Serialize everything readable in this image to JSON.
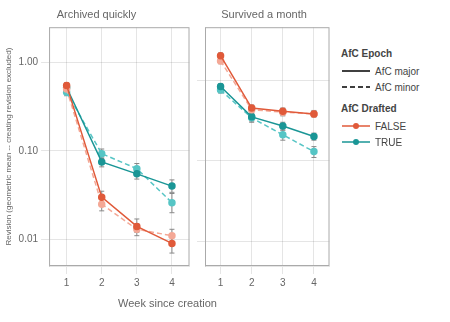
{
  "chart_data": {
    "type": "line",
    "xlabel": "Week since creation",
    "log": "y",
    "grid": true,
    "legend": "right",
    "legend_groups": [
      {
        "title": "AfC Epoch",
        "entries": [
          {
            "label": "AfC major",
            "color": "#000000",
            "line_style": "solid"
          },
          {
            "label": "AfC minor",
            "color": "#000000",
            "line_style": "dashed"
          }
        ]
      },
      {
        "title": "AfC Drafted",
        "entries": [
          {
            "label": "FALSE",
            "color": "#e05a3a",
            "line_style": "solid",
            "marker": "o"
          },
          {
            "label": "TRUE",
            "color": "#1a9696",
            "line_style": "solid",
            "marker": "o"
          }
        ]
      }
    ],
    "panels": [
      {
        "title": "Archived quickly",
        "ylabel": "Revision (geometric mean -- creating revision excluded)",
        "x": [
          1,
          2,
          3,
          4
        ],
        "xlim": [
          0.5,
          4.5
        ],
        "xticks": [
          1,
          2,
          3,
          4
        ],
        "ylim": [
          0.005,
          2.5
        ],
        "yticks": [
          0.01,
          {
            "value": 0.1,
            "label": "0.10"
          },
          {
            "value": 1,
            "label": "1.00"
          }
        ],
        "series": [
          {
            "drafted": "FALSE",
            "epoch": "AfC major",
            "color": "#e05a3a",
            "line_style": "solid",
            "marker": "o",
            "values": [
              0.55,
              0.03,
              0.014,
              0.009
            ],
            "low": [
              0.51,
              0.026,
              0.012,
              0.007
            ],
            "high": [
              0.59,
              0.035,
              0.017,
              0.011
            ]
          },
          {
            "drafted": "FALSE",
            "epoch": "AfC minor",
            "color": "#f4a896",
            "line_style": "dashed",
            "marker": "o",
            "values": [
              0.5,
              0.025,
              0.013,
              0.011
            ],
            "low": [
              0.46,
              0.021,
              0.011,
              0.009
            ],
            "high": [
              0.54,
              0.03,
              0.015,
              0.013
            ]
          },
          {
            "drafted": "TRUE",
            "epoch": "AfC major",
            "color": "#1a9696",
            "line_style": "solid",
            "marker": "o",
            "values": [
              0.52,
              0.075,
              0.055,
              0.04
            ],
            "low": [
              0.48,
              0.066,
              0.048,
              0.034
            ],
            "high": [
              0.56,
              0.085,
              0.063,
              0.047
            ]
          },
          {
            "drafted": "TRUE",
            "epoch": "AfC minor",
            "color": "#56c5c5",
            "line_style": "dashed",
            "marker": "o",
            "values": [
              0.46,
              0.093,
              0.063,
              0.026
            ],
            "low": [
              0.42,
              0.082,
              0.055,
              0.02
            ],
            "high": [
              0.5,
              0.105,
              0.072,
              0.033
            ]
          }
        ]
      },
      {
        "title": "Survived a month",
        "tick_labels": "x",
        "x": [
          1,
          2,
          3,
          4
        ],
        "xlim": [
          0.5,
          4.5
        ],
        "xticks": [
          1,
          2,
          3,
          4
        ],
        "ylim": [
          0.005,
          4.5
        ],
        "yticks": [
          0.01,
          0.1,
          1
        ],
        "series": [
          {
            "drafted": "FALSE",
            "epoch": "AfC major",
            "color": "#e05a3a",
            "line_style": "solid",
            "marker": "o",
            "values": [
              2.0,
              0.45,
              0.41,
              0.38
            ],
            "low": [
              1.85,
              0.41,
              0.37,
              0.35
            ],
            "high": [
              2.16,
              0.49,
              0.45,
              0.42
            ]
          },
          {
            "drafted": "FALSE",
            "epoch": "AfC minor",
            "color": "#f4a896",
            "line_style": "dashed",
            "marker": "o",
            "values": [
              1.72,
              0.43,
              0.4,
              0.38
            ],
            "low": [
              1.59,
              0.39,
              0.36,
              0.35
            ],
            "high": [
              1.86,
              0.47,
              0.44,
              0.41
            ]
          },
          {
            "drafted": "TRUE",
            "epoch": "AfC major",
            "color": "#1a9696",
            "line_style": "solid",
            "marker": "o",
            "values": [
              0.83,
              0.35,
              0.27,
              0.2
            ],
            "low": [
              0.77,
              0.31,
              0.24,
              0.18
            ],
            "high": [
              0.9,
              0.39,
              0.3,
              0.22
            ]
          },
          {
            "drafted": "TRUE",
            "epoch": "AfC minor",
            "color": "#56c5c5",
            "line_style": "dashed",
            "marker": "o",
            "values": [
              0.75,
              0.34,
              0.21,
              0.13
            ],
            "low": [
              0.69,
              0.3,
              0.18,
              0.11
            ],
            "high": [
              0.81,
              0.38,
              0.24,
              0.15
            ]
          }
        ]
      }
    ]
  }
}
